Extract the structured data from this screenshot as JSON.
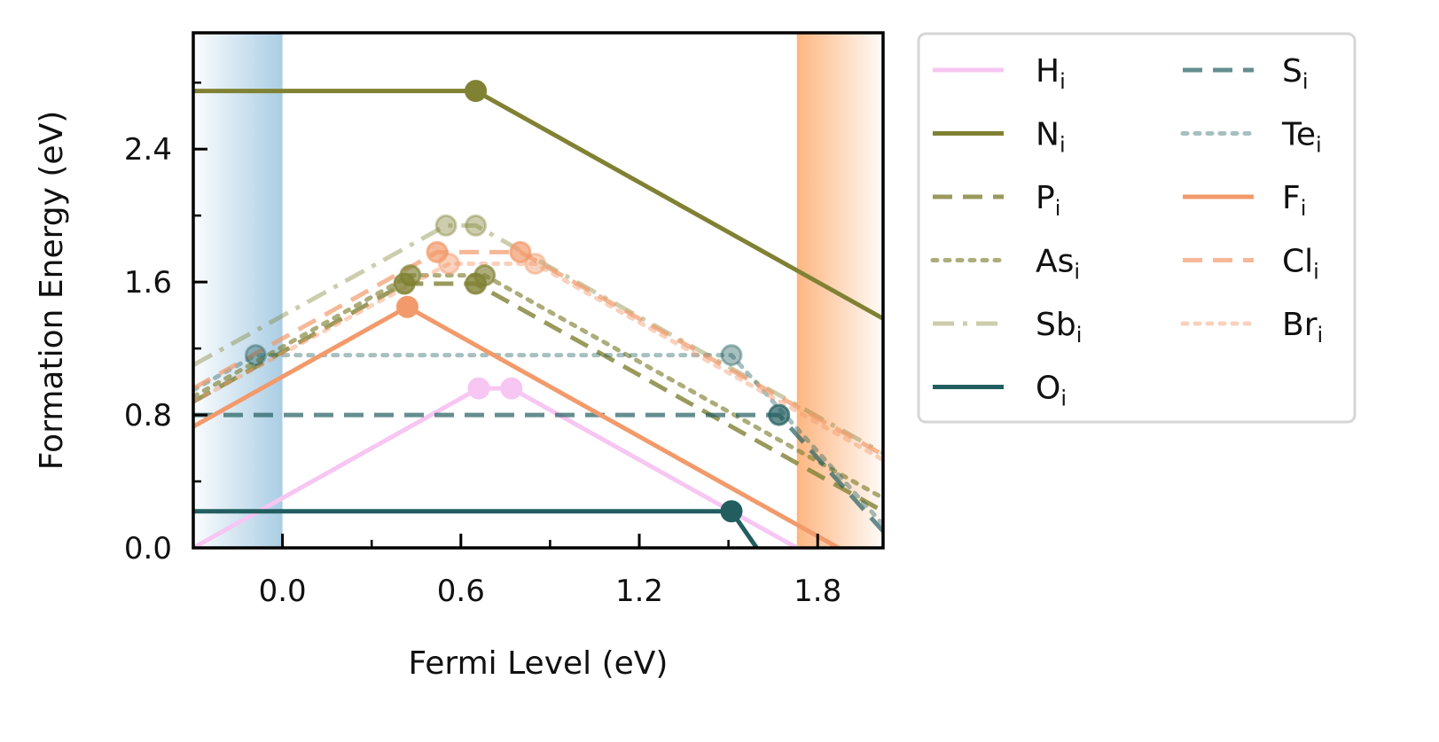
{
  "chart_data": {
    "type": "line",
    "xlabel": "Fermi Level (eV)",
    "ylabel": "Formation Energy (eV)",
    "xlim": [
      -0.3,
      2.02
    ],
    "ylim": [
      0.0,
      3.1
    ],
    "xticks": [
      0.0,
      0.6,
      1.2,
      1.8
    ],
    "xtick_labels": [
      "0.0",
      "0.6",
      "1.2",
      "1.8"
    ],
    "yticks": [
      0.0,
      0.8,
      1.6,
      2.4
    ],
    "ytick_labels": [
      "0.0",
      "0.8",
      "1.6",
      "2.4"
    ],
    "shaded_regions": [
      {
        "name": "valence-band",
        "x": [
          -0.3,
          0.0
        ],
        "color": "#a6cbe3"
      },
      {
        "name": "conduction-band",
        "x": [
          1.73,
          2.02
        ],
        "color": "#fdb27a"
      }
    ],
    "legend_position": "outside-right",
    "series": [
      {
        "name": "H",
        "sub": "i",
        "color": "#f7c6f2",
        "dash": "solid",
        "opacity": 1.0,
        "x": [
          -0.3,
          0.66,
          0.77,
          2.02
        ],
        "y": [
          0.0,
          0.96,
          0.96,
          -0.29
        ],
        "kinks": [
          1,
          2
        ]
      },
      {
        "name": "N",
        "sub": "i",
        "color": "#808133",
        "dash": "solid",
        "opacity": 1.0,
        "x": [
          -0.3,
          0.65,
          2.02
        ],
        "y": [
          2.75,
          2.75,
          1.38
        ],
        "kinks": [
          1
        ]
      },
      {
        "name": "P",
        "sub": "i",
        "color": "#808133",
        "dash": "dashed",
        "opacity": 0.8,
        "x": [
          -0.3,
          0.41,
          0.65,
          2.02
        ],
        "y": [
          0.88,
          1.59,
          1.59,
          0.22
        ],
        "kinks": [
          1,
          2
        ]
      },
      {
        "name": "As",
        "sub": "i",
        "color": "#808133",
        "dash": "dotted",
        "opacity": 0.65,
        "x": [
          -0.3,
          0.43,
          0.68,
          2.02
        ],
        "y": [
          0.91,
          1.64,
          1.64,
          0.3
        ],
        "kinks": [
          1,
          2
        ]
      },
      {
        "name": "Sb",
        "sub": "i",
        "color": "#808133",
        "dash": "dashdot",
        "opacity": 0.4,
        "x": [
          -0.3,
          0.55,
          0.65,
          2.02
        ],
        "y": [
          1.1,
          1.94,
          1.94,
          0.57
        ],
        "kinks": [
          1,
          2
        ]
      },
      {
        "name": "O",
        "sub": "i",
        "color": "#225e60",
        "dash": "solid",
        "opacity": 1.0,
        "x": [
          -0.3,
          1.51,
          2.02
        ],
        "y": [
          0.22,
          0.22,
          -1.1
        ],
        "kinks": [
          1
        ]
      },
      {
        "name": "S",
        "sub": "i",
        "color": "#225e60",
        "dash": "dashed",
        "opacity": 0.7,
        "x": [
          -0.3,
          1.67,
          2.02
        ],
        "y": [
          0.8,
          0.8,
          0.1
        ],
        "kinks": [
          1
        ]
      },
      {
        "name": "Te",
        "sub": "i",
        "color": "#225e60",
        "dash": "dotted",
        "opacity": 0.4,
        "x": [
          -0.3,
          -0.09,
          1.51,
          2.02
        ],
        "y": [
          0.95,
          1.16,
          1.16,
          0.14
        ],
        "kinks": [
          1,
          2
        ]
      },
      {
        "name": "F",
        "sub": "i",
        "color": "#f29a6b",
        "dash": "solid",
        "opacity": 1.0,
        "x": [
          -0.3,
          0.42,
          2.02
        ],
        "y": [
          0.73,
          1.45,
          -0.15
        ],
        "kinks": [
          1
        ]
      },
      {
        "name": "Cl",
        "sub": "i",
        "color": "#f29a6b",
        "dash": "dashed",
        "opacity": 0.7,
        "x": [
          -0.3,
          0.52,
          0.8,
          2.02
        ],
        "y": [
          0.96,
          1.78,
          1.78,
          0.56
        ],
        "kinks": [
          1,
          2
        ]
      },
      {
        "name": "Br",
        "sub": "i",
        "color": "#f29a6b",
        "dash": "dotted",
        "opacity": 0.45,
        "x": [
          -0.3,
          0.56,
          0.85,
          2.02
        ],
        "y": [
          0.88,
          1.71,
          1.71,
          0.53
        ],
        "kinks": [
          1,
          2
        ]
      }
    ]
  }
}
